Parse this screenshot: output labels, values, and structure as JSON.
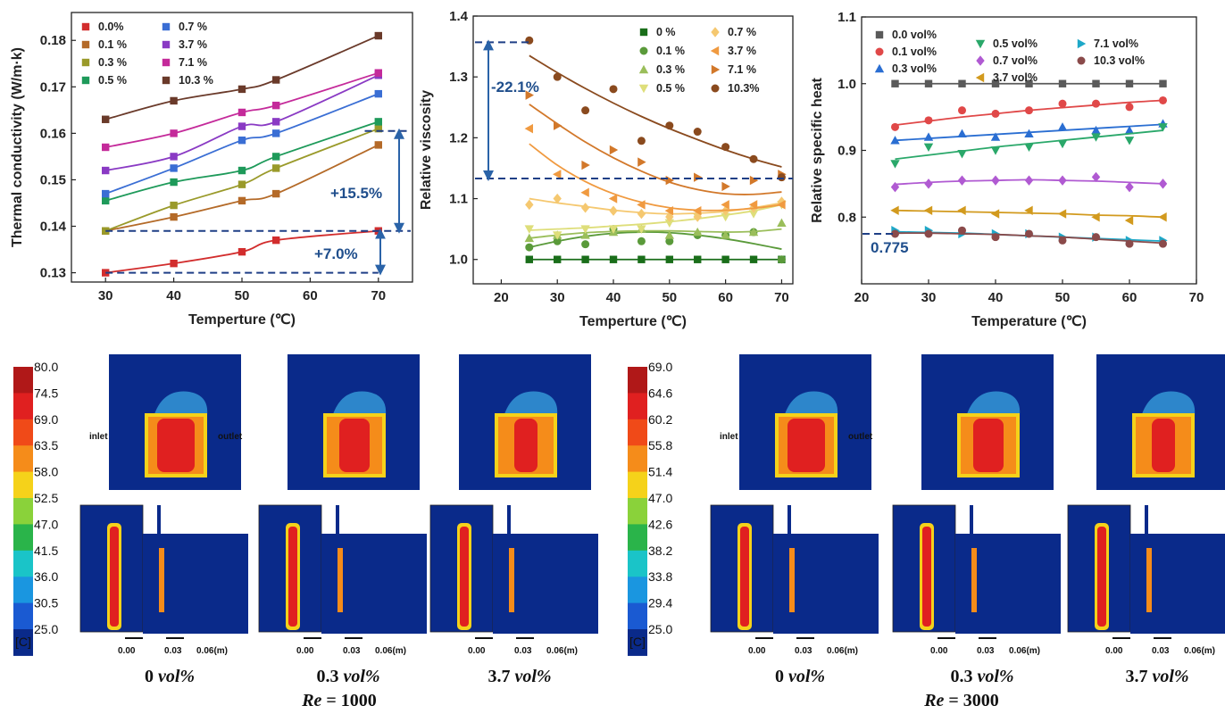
{
  "colors": {
    "axis": "#222222",
    "dash": "#1f3f86",
    "arrow": "#2a63a8",
    "blue_bg": "#0a2a8a"
  },
  "chart_data": [
    {
      "type": "line",
      "title": "",
      "xlabel": "Temperture (℃)",
      "ylabel": "Thermal conductivity (W/m·k)",
      "xlim": [
        25,
        75
      ],
      "ylim": [
        0.128,
        0.186
      ],
      "xticks": [
        "30",
        "40",
        "50",
        "60",
        "70"
      ],
      "yticks": [
        "0.13",
        "0.14",
        "0.15",
        "0.16",
        "0.17",
        "0.18"
      ],
      "x": [
        30,
        40,
        50,
        55,
        70
      ],
      "series": [
        {
          "name": "0.0%",
          "color": "#d22d2d",
          "marker": "square",
          "values": [
            0.13,
            0.132,
            0.1345,
            0.137,
            0.139
          ]
        },
        {
          "name": "0.1 %",
          "color": "#b46a28",
          "marker": "square",
          "values": [
            0.139,
            0.142,
            0.1455,
            0.147,
            0.1575
          ]
        },
        {
          "name": "0.3 %",
          "color": "#9a9a2a",
          "marker": "square",
          "values": [
            0.139,
            0.1445,
            0.149,
            0.1525,
            0.161
          ]
        },
        {
          "name": "0.5 %",
          "color": "#1e9a5a",
          "marker": "square",
          "values": [
            0.1455,
            0.1495,
            0.152,
            0.155,
            0.1625
          ]
        },
        {
          "name": "0.7 %",
          "color": "#3a6ed4",
          "marker": "square",
          "values": [
            0.147,
            0.1525,
            0.1585,
            0.16,
            0.1685
          ]
        },
        {
          "name": "3.7 %",
          "color": "#8a3ac4",
          "marker": "square",
          "values": [
            0.152,
            0.155,
            0.1615,
            0.1625,
            0.1725
          ]
        },
        {
          "name": "7.1 %",
          "color": "#c42a9a",
          "marker": "square",
          "values": [
            0.157,
            0.16,
            0.1645,
            0.166,
            0.173
          ]
        },
        {
          "name": "10.3 %",
          "color": "#6a3a2a",
          "marker": "square",
          "values": [
            0.163,
            0.167,
            0.1695,
            0.1715,
            0.181
          ]
        }
      ],
      "annotations": [
        "+15.5%",
        "+7.0%"
      ]
    },
    {
      "type": "scatter",
      "title": "",
      "xlabel": "Temperture (℃)",
      "ylabel": "Relative viscosity",
      "xlim": [
        15,
        72
      ],
      "ylim": [
        0.96,
        1.4
      ],
      "xticks": [
        "20",
        "30",
        "40",
        "50",
        "60",
        "70"
      ],
      "yticks": [
        "1.0",
        "1.1",
        "1.2",
        "1.3",
        "1.4"
      ],
      "x": [
        25,
        30,
        35,
        40,
        45,
        50,
        55,
        60,
        65,
        70
      ],
      "series": [
        {
          "name": "0 %",
          "color": "#1a6e1a",
          "marker": "square",
          "values": [
            1.0,
            1.0,
            1.0,
            1.0,
            1.0,
            1.0,
            1.0,
            1.0,
            1.0,
            1.0
          ],
          "fit": [
            1.0,
            1.0,
            1.0,
            1.0,
            1.0,
            1.0,
            1.0,
            1.0,
            1.0,
            1.0
          ]
        },
        {
          "name": "0.1 %",
          "color": "#5a9a3a",
          "marker": "circle",
          "values": [
            1.02,
            1.03,
            1.025,
            1.05,
            1.03,
            1.03,
            1.04,
            1.04,
            1.045,
            1.0
          ],
          "fit": [
            1.02,
            1.03,
            1.038,
            1.043,
            1.045,
            1.044,
            1.04,
            1.034,
            1.026,
            1.017
          ]
        },
        {
          "name": "0.3 %",
          "color": "#9abe5a",
          "marker": "triangle",
          "values": [
            1.035,
            1.04,
            1.04,
            1.045,
            1.05,
            1.04,
            1.045,
            1.04,
            1.045,
            1.06
          ],
          "fit": [
            1.035,
            1.04,
            1.044,
            1.046,
            1.047,
            1.047,
            1.046,
            1.045,
            1.046,
            1.05
          ]
        },
        {
          "name": "0.5 %",
          "color": "#dede7a",
          "marker": "tri-down",
          "values": [
            1.05,
            1.04,
            1.05,
            1.05,
            1.05,
            1.06,
            1.07,
            1.07,
            1.075,
            1.09
          ],
          "fit": [
            1.048,
            1.05,
            1.052,
            1.055,
            1.058,
            1.062,
            1.067,
            1.073,
            1.08,
            1.09
          ]
        },
        {
          "name": "0.7 %",
          "color": "#f5c870",
          "marker": "diamond",
          "values": [
            1.09,
            1.1,
            1.085,
            1.08,
            1.075,
            1.07,
            1.07,
            1.08,
            1.085,
            1.095
          ],
          "fit": [
            1.1,
            1.093,
            1.087,
            1.081,
            1.077,
            1.075,
            1.076,
            1.079,
            1.085,
            1.093
          ]
        },
        {
          "name": "3.7 %",
          "color": "#f09a40",
          "marker": "tri-left",
          "values": [
            1.215,
            1.14,
            1.11,
            1.1,
            1.09,
            1.08,
            1.08,
            1.09,
            1.09,
            1.09
          ],
          "fit": [
            1.19,
            1.155,
            1.128,
            1.108,
            1.094,
            1.085,
            1.081,
            1.081,
            1.084,
            1.09
          ]
        },
        {
          "name": "7.1 %",
          "color": "#d2782a",
          "marker": "tri-right",
          "values": [
            1.27,
            1.22,
            1.155,
            1.18,
            1.16,
            1.13,
            1.135,
            1.12,
            1.13,
            1.14
          ],
          "fit": [
            1.255,
            1.223,
            1.193,
            1.167,
            1.145,
            1.127,
            1.115,
            1.108,
            1.107,
            1.111
          ]
        },
        {
          "name": "10.3%",
          "color": "#8a4a1e",
          "marker": "circle",
          "values": [
            1.36,
            1.3,
            1.245,
            1.28,
            1.195,
            1.22,
            1.21,
            1.185,
            1.165,
            1.135
          ],
          "fit": [
            1.335,
            1.307,
            1.281,
            1.257,
            1.235,
            1.215,
            1.197,
            1.18,
            1.165,
            1.152
          ]
        }
      ],
      "annotations": [
        "-22.1%"
      ]
    },
    {
      "type": "line",
      "title": "",
      "xlabel": "Temperature (℃)",
      "ylabel": "Relative specific heat",
      "xlim": [
        20,
        70
      ],
      "ylim": [
        0.7,
        1.1
      ],
      "xticks": [
        "20",
        "30",
        "40",
        "50",
        "60",
        "70"
      ],
      "yticks": [
        "0.8",
        "0.9",
        "1.0",
        "1.1"
      ],
      "x": [
        25,
        30,
        35,
        40,
        45,
        50,
        55,
        60,
        65
      ],
      "series": [
        {
          "name": "0.0 vol%",
          "color": "#5a5a5a",
          "marker": "square",
          "values": [
            1.0,
            1.0,
            1.0,
            1.0,
            1.0,
            1.0,
            1.0,
            1.0,
            1.0
          ],
          "fit": [
            1.0,
            1.0,
            1.0,
            1.0,
            1.0,
            1.0,
            1.0,
            1.0,
            1.0
          ]
        },
        {
          "name": "0.1 vol%",
          "color": "#e04848",
          "marker": "circle",
          "values": [
            0.935,
            0.945,
            0.96,
            0.955,
            0.96,
            0.97,
            0.97,
            0.965,
            0.975
          ],
          "fit": [
            0.938,
            0.944,
            0.95,
            0.955,
            0.96,
            0.964,
            0.968,
            0.972,
            0.975
          ]
        },
        {
          "name": "0.3 vol%",
          "color": "#2a6ed2",
          "marker": "triangle",
          "values": [
            0.915,
            0.92,
            0.925,
            0.92,
            0.925,
            0.935,
            0.93,
            0.93,
            0.94
          ],
          "fit": [
            0.915,
            0.918,
            0.921,
            0.924,
            0.927,
            0.93,
            0.933,
            0.936,
            0.939
          ]
        },
        {
          "name": "0.5 vol%",
          "color": "#2aa86a",
          "marker": "tri-down",
          "values": [
            0.88,
            0.905,
            0.895,
            0.9,
            0.905,
            0.91,
            0.92,
            0.915,
            0.935
          ],
          "fit": [
            0.887,
            0.893,
            0.899,
            0.905,
            0.91,
            0.915,
            0.92,
            0.925,
            0.93
          ]
        },
        {
          "name": "0.7 vol%",
          "color": "#b05ad2",
          "marker": "diamond",
          "values": [
            0.845,
            0.85,
            0.855,
            0.855,
            0.855,
            0.855,
            0.86,
            0.845,
            0.85
          ],
          "fit": [
            0.849,
            0.852,
            0.854,
            0.855,
            0.856,
            0.855,
            0.854,
            0.852,
            0.85
          ]
        },
        {
          "name": "3.7 vol%",
          "color": "#d29a1e",
          "marker": "tri-left",
          "values": [
            0.81,
            0.81,
            0.81,
            0.805,
            0.81,
            0.805,
            0.8,
            0.795,
            0.8
          ],
          "fit": [
            0.81,
            0.809,
            0.808,
            0.807,
            0.806,
            0.805,
            0.803,
            0.802,
            0.8
          ]
        },
        {
          "name": "7.1 vol%",
          "color": "#1ea8c8",
          "marker": "tri-right",
          "values": [
            0.78,
            0.78,
            0.775,
            0.775,
            0.775,
            0.77,
            0.77,
            0.765,
            0.765
          ],
          "fit": [
            0.778,
            0.777,
            0.776,
            0.774,
            0.772,
            0.77,
            0.768,
            0.766,
            0.764
          ]
        },
        {
          "name": "10.3 vol%",
          "color": "#8a4a4a",
          "marker": "circle",
          "values": [
            0.775,
            0.775,
            0.78,
            0.77,
            0.775,
            0.765,
            0.77,
            0.76,
            0.76
          ],
          "fit": [
            0.776,
            0.776,
            0.775,
            0.774,
            0.772,
            0.77,
            0.767,
            0.764,
            0.761
          ]
        }
      ],
      "annotations": [
        "0.775"
      ]
    }
  ],
  "contours": {
    "groups": [
      {
        "colorbar": [
          "80.0",
          "74.5",
          "69.0",
          "63.5",
          "58.0",
          "52.5",
          "47.0",
          "41.5",
          "36.0",
          "30.5",
          "25.0"
        ],
        "unit": "[C]",
        "re_label": "Re",
        "re_value": "= 1000",
        "panels": [
          {
            "caption_num": "0",
            "caption_unit": "vol%",
            "inlet": "inlet",
            "outlet": "outlet"
          },
          {
            "caption_num": "0.3",
            "caption_unit": "vol%"
          },
          {
            "caption_num": "3.7",
            "caption_unit": "vol%"
          }
        ]
      },
      {
        "colorbar": [
          "69.0",
          "64.6",
          "60.2",
          "55.8",
          "51.4",
          "47.0",
          "42.6",
          "38.2",
          "33.8",
          "29.4",
          "25.0"
        ],
        "unit": "[C]",
        "re_label": "Re",
        "re_value": "= 3000",
        "panels": [
          {
            "caption_num": "0",
            "caption_unit": "vol%",
            "inlet": "inlet",
            "outlet": "outlet"
          },
          {
            "caption_num": "0.3",
            "caption_unit": "vol%"
          },
          {
            "caption_num": "3.7",
            "caption_unit": "vol%"
          }
        ]
      }
    ],
    "scale": [
      "0.00",
      "0.03",
      "0.06(m)"
    ],
    "cb_colors": [
      "#b01818",
      "#e02020",
      "#f04a18",
      "#f58c1a",
      "#f5d21a",
      "#8ad23a",
      "#2ab44a",
      "#1ac4c8",
      "#1a96e0",
      "#1a5ad2",
      "#0a2a8a"
    ]
  }
}
